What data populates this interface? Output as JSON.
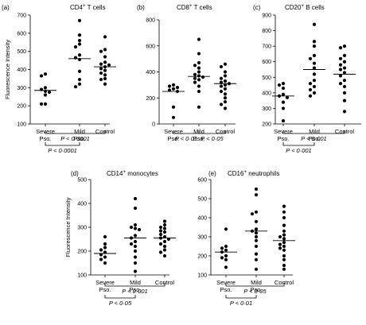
{
  "chart_data": [
    {
      "type": "scatter",
      "panel_label": "(a)",
      "title_main": "CD4",
      "title_sup": "+",
      "title_rest": " T cells",
      "ylabel": "Fluorescence Intensity",
      "ylim": [
        100,
        700
      ],
      "yticks": [
        "100",
        "200",
        "300",
        "400",
        "500",
        "600",
        "700"
      ],
      "categories": [
        [
          "Severe",
          "Pso."
        ],
        [
          "Mild",
          "Pso."
        ],
        [
          "Control",
          ""
        ]
      ],
      "series": [
        {
          "values": [
            375,
            365,
            300,
            290,
            280,
            275,
            260,
            210,
            210
          ],
          "median": 285
        },
        {
          "values": [
            670,
            590,
            560,
            540,
            525,
            480,
            465,
            455,
            390,
            345,
            320,
            305
          ],
          "median": 460
        },
        {
          "values": [
            580,
            510,
            500,
            470,
            440,
            430,
            425,
            415,
            405,
            395,
            380,
            370,
            350,
            345,
            320
          ],
          "median": 415
        }
      ],
      "brackets": [
        {
          "from": 0,
          "to": 2,
          "text": "P < 0·0001"
        },
        {
          "from": 0,
          "to": 1,
          "text": "P < 0·0001"
        }
      ]
    },
    {
      "type": "scatter",
      "panel_label": "(b)",
      "title_main": "CD8",
      "title_sup": "+",
      "title_rest": " T cells",
      "ylabel": "",
      "ylim": [
        0,
        800
      ],
      "yticks": [
        "0",
        "200",
        "400",
        "600",
        "800"
      ],
      "categories": [
        [
          "Severe",
          "Pso."
        ],
        [
          "Mild",
          "Pso."
        ],
        [
          "Control",
          ""
        ]
      ],
      "series": [
        {
          "values": [
            300,
            290,
            280,
            270,
            260,
            250,
            130,
            50
          ],
          "median": 250
        },
        {
          "values": [
            650,
            540,
            470,
            450,
            430,
            400,
            380,
            370,
            360,
            350,
            340,
            320,
            290,
            250,
            130
          ],
          "median": 365
        },
        {
          "values": [
            460,
            440,
            400,
            370,
            350,
            330,
            320,
            310,
            300,
            290,
            270,
            250,
            230,
            200,
            170,
            150,
            120
          ],
          "median": 310
        }
      ],
      "brackets": [
        {
          "from": 0,
          "to": 1,
          "text": "P < 0·01"
        },
        {
          "from": 1,
          "to": 2,
          "text": "P < 0·05"
        }
      ]
    },
    {
      "type": "scatter",
      "panel_label": "(c)",
      "title_main": "CD20",
      "title_sup": "+",
      "title_rest": " B cells",
      "ylabel": "",
      "ylim": [
        200,
        900
      ],
      "yticks": [
        "200",
        "300",
        "400",
        "500",
        "600",
        "700",
        "800",
        "900"
      ],
      "categories": [
        [
          "Severe",
          "Pso."
        ],
        [
          "Mild",
          "Pso."
        ],
        [
          "Control",
          ""
        ]
      ],
      "series": [
        {
          "values": [
            460,
            450,
            430,
            390,
            380,
            370,
            340,
            300,
            220
          ],
          "median": 380
        },
        {
          "values": [
            840,
            730,
            700,
            640,
            620,
            590,
            560,
            520,
            480,
            460,
            440,
            420,
            400,
            380
          ],
          "median": 550
        },
        {
          "values": [
            700,
            690,
            640,
            620,
            600,
            580,
            560,
            550,
            530,
            510,
            480,
            460,
            440,
            400,
            350,
            280
          ],
          "median": 520
        }
      ],
      "brackets": [
        {
          "from": 0,
          "to": 2,
          "text": "P < 0·001"
        },
        {
          "from": 0,
          "to": 1,
          "text": "P < 0·001"
        }
      ]
    },
    {
      "type": "scatter",
      "panel_label": "(d)",
      "title_main": "CD14",
      "title_sup": "+",
      "title_rest": " monocytes",
      "ylabel": "Fluorescence Intensity",
      "ylim": [
        100,
        500
      ],
      "yticks": [
        "100",
        "200",
        "300",
        "400",
        "500"
      ],
      "categories": [
        [
          "Severe",
          "Pso."
        ],
        [
          "Mild",
          "Pso."
        ],
        [
          "Control",
          ""
        ]
      ],
      "series": [
        {
          "values": [
            260,
            230,
            215,
            205,
            195,
            185,
            175,
            165,
            150
          ],
          "median": 190
        },
        {
          "values": [
            420,
            380,
            310,
            300,
            295,
            290,
            265,
            255,
            240,
            230,
            220,
            200,
            175,
            150,
            115
          ],
          "median": 255
        },
        {
          "values": [
            325,
            310,
            300,
            295,
            285,
            280,
            270,
            260,
            255,
            250,
            240,
            230,
            220,
            205,
            195,
            180
          ],
          "median": 255
        }
      ],
      "brackets": [
        {
          "from": 0,
          "to": 2,
          "text": "P < 0·001"
        },
        {
          "from": 0,
          "to": 1,
          "text": "P < 0·05"
        }
      ]
    },
    {
      "type": "scatter",
      "panel_label": "(e)",
      "title_main": "CD16",
      "title_sup": "+",
      "title_rest": " neutrophils",
      "ylabel": "",
      "ylim": [
        100,
        600
      ],
      "yticks": [
        "100",
        "200",
        "300",
        "400",
        "500",
        "600"
      ],
      "categories": [
        [
          "Severe",
          "Pso."
        ],
        [
          "Mild",
          "Pso."
        ],
        [
          "Control",
          ""
        ]
      ],
      "series": [
        {
          "values": [
            340,
            250,
            240,
            230,
            220,
            200,
            190,
            180,
            140
          ],
          "median": 220
        },
        {
          "values": [
            550,
            520,
            430,
            420,
            380,
            340,
            330,
            320,
            300,
            280,
            250,
            210,
            180,
            130
          ],
          "median": 330
        },
        {
          "values": [
            460,
            430,
            400,
            360,
            330,
            310,
            300,
            290,
            270,
            260,
            250,
            240,
            230,
            200,
            180,
            150,
            130
          ],
          "median": 280
        }
      ],
      "brackets": [
        {
          "from": 0,
          "to": 2,
          "text": "P < 0·05"
        },
        {
          "from": 0,
          "to": 1,
          "text": "P < 0·01"
        }
      ]
    }
  ]
}
